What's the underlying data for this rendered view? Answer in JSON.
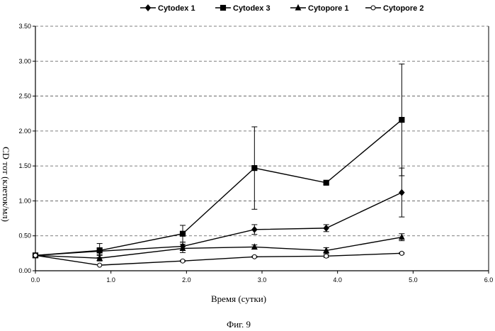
{
  "figure_caption": "Фиг. 9",
  "chart_data": {
    "type": "line",
    "xlabel": "Время (сутки)",
    "ylabel": "CD тот (клеток/мл)",
    "xlim": [
      0,
      6
    ],
    "ylim": [
      0,
      3.5
    ],
    "x_ticks": [
      "0.0",
      "1.0",
      "2.0",
      "3.0",
      "4.0",
      "5.0",
      "6.0"
    ],
    "y_ticks": [
      "0.00",
      "0.50",
      "1.00",
      "1.50",
      "2.00",
      "2.50",
      "3.00",
      "3.50"
    ],
    "grid": "horizontal dashed",
    "legend_position": "top",
    "series": [
      {
        "name": "Cytodex 1",
        "marker": "diamond",
        "fill": "#000000",
        "points": [
          [
            0,
            0.22
          ],
          [
            0.85,
            0.28
          ],
          [
            1.95,
            0.35
          ],
          [
            2.9,
            0.59
          ],
          [
            3.85,
            0.61
          ],
          [
            4.85,
            1.12
          ]
        ],
        "errors": [
          0,
          0.05,
          0.06,
          0.07,
          0.05,
          0.35
        ]
      },
      {
        "name": "Cytodex 3",
        "marker": "square",
        "fill": "#000000",
        "points": [
          [
            0,
            0.22
          ],
          [
            0.85,
            0.29
          ],
          [
            1.95,
            0.53
          ],
          [
            2.9,
            1.47
          ],
          [
            3.85,
            1.26
          ],
          [
            4.85,
            2.16
          ]
        ],
        "errors": [
          0,
          0.1,
          0.12,
          0.59,
          0.02,
          0.8
        ]
      },
      {
        "name": "Cytopore 1",
        "marker": "triangle",
        "fill": "#000000",
        "points": [
          [
            0,
            0.22
          ],
          [
            0.85,
            0.18
          ],
          [
            1.95,
            0.32
          ],
          [
            2.9,
            0.34
          ],
          [
            3.85,
            0.29
          ],
          [
            4.85,
            0.48
          ]
        ],
        "errors": [
          0,
          0.04,
          0.06,
          0.03,
          0.04,
          0.05
        ]
      },
      {
        "name": "Cytopore 2",
        "marker": "circle",
        "fill": "#ffffff",
        "points": [
          [
            0,
            0.22
          ],
          [
            0.85,
            0.08
          ],
          [
            1.95,
            0.14
          ],
          [
            2.9,
            0.2
          ],
          [
            3.85,
            0.21
          ],
          [
            4.85,
            0.25
          ]
        ],
        "errors": [
          0,
          0,
          0.01,
          0.01,
          0.02,
          0.01
        ]
      }
    ]
  }
}
